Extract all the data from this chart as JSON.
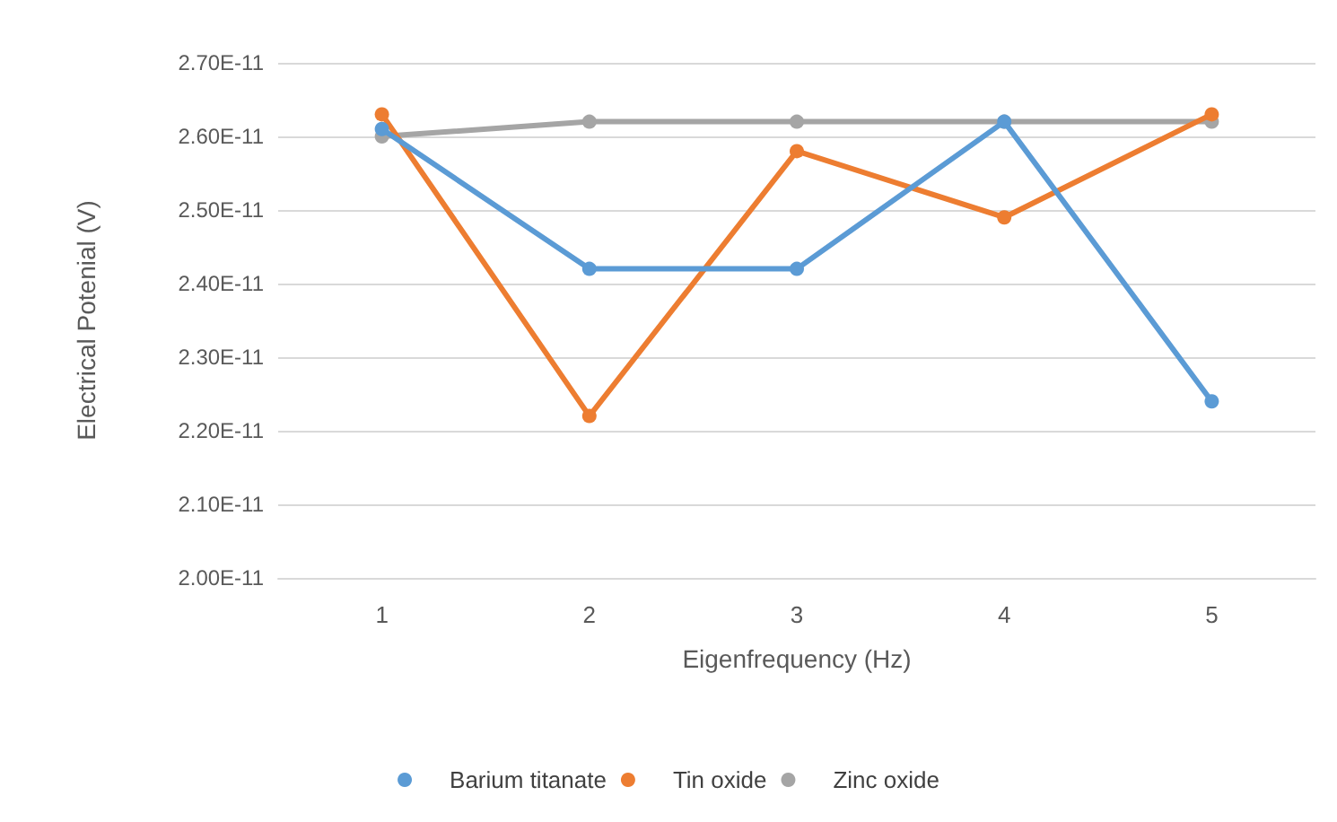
{
  "chart_data": {
    "type": "line",
    "xlabel": "Eigenfrequency (Hz)",
    "ylabel": "Electrical Potenial (V)",
    "categories": [
      "1",
      "2",
      "3",
      "4",
      "5"
    ],
    "series": [
      {
        "name": "Barium titanate",
        "color": "#5b9bd5",
        "values": [
          2.61e-11,
          2.42e-11,
          2.42e-11,
          2.62e-11,
          2.24e-11
        ]
      },
      {
        "name": "Tin oxide",
        "color": "#ed7d31",
        "values": [
          2.63e-11,
          2.22e-11,
          2.58e-11,
          2.49e-11,
          2.63e-11
        ]
      },
      {
        "name": "Zinc oxide",
        "color": "#a5a5a5",
        "values": [
          2.6e-11,
          2.62e-11,
          2.62e-11,
          2.62e-11,
          2.62e-11
        ]
      }
    ],
    "ylim": [
      2e-11,
      2.7e-11
    ],
    "yticks": [
      {
        "value": 2e-11,
        "label": "2.00E-11"
      },
      {
        "value": 2.1e-11,
        "label": "2.10E-11"
      },
      {
        "value": 2.2e-11,
        "label": "2.20E-11"
      },
      {
        "value": 2.3e-11,
        "label": "2.30E-11"
      },
      {
        "value": 2.4e-11,
        "label": "2.40E-11"
      },
      {
        "value": 2.5e-11,
        "label": "2.50E-11"
      },
      {
        "value": 2.6e-11,
        "label": "2.60E-11"
      },
      {
        "value": 2.7e-11,
        "label": "2.70E-11"
      }
    ],
    "grid": "y",
    "legend": "bottom",
    "marker": "circle",
    "line_style": "solid"
  }
}
